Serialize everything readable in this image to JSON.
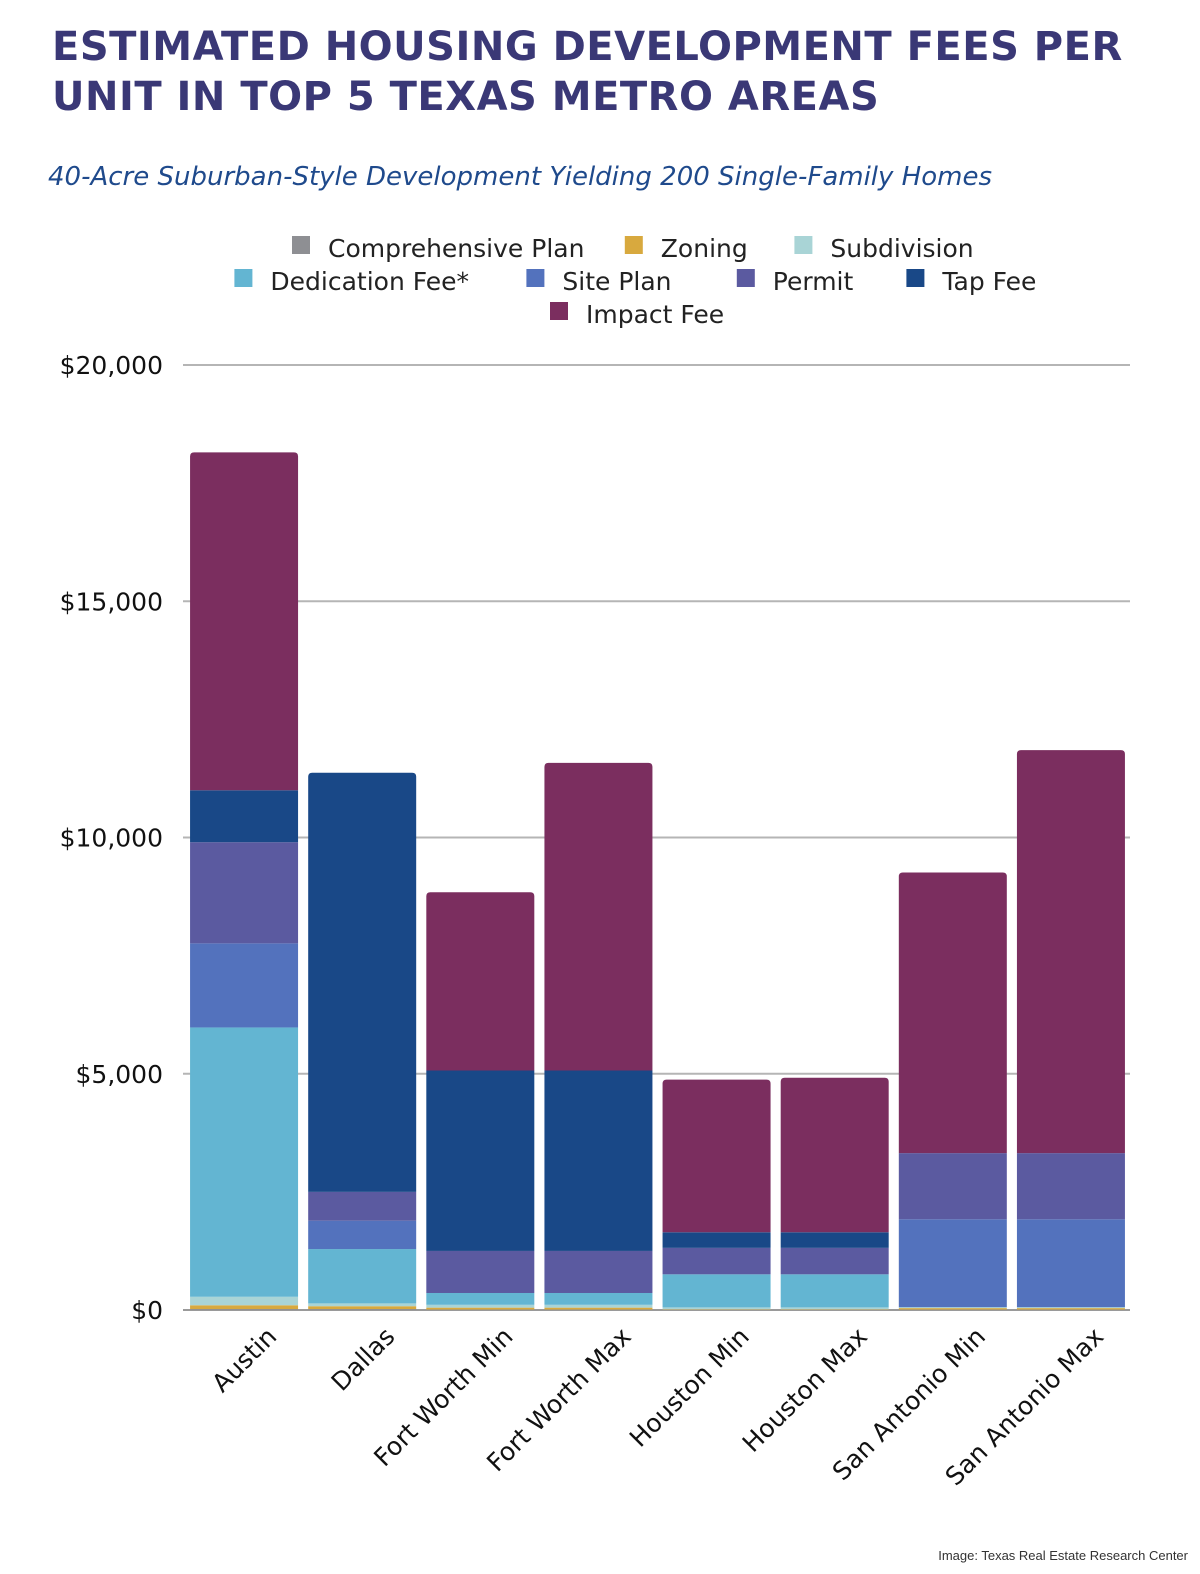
{
  "title": "ESTIMATED HOUSING DEVELOPMENT FEES PER UNIT IN TOP 5 TEXAS METRO AREAS",
  "subtitle": "40-Acre Suburban-Style Development Yielding 200 Single-Family Homes",
  "credit": "Image: Texas Real Estate Research Center",
  "chart_data": {
    "type": "bar",
    "stacked": true,
    "title": "ESTIMATED HOUSING DEVELOPMENT FEES PER UNIT IN TOP 5 TEXAS METRO AREAS",
    "subtitle": "40-Acre Suburban-Style Development Yielding 200 Single-Family Homes",
    "xlabel": "",
    "ylabel": "",
    "ylim": [
      0,
      20000
    ],
    "yticks": [
      0,
      5000,
      10000,
      15000,
      20000
    ],
    "ytick_labels": [
      "$0",
      "$5,000",
      "$10,000",
      "$15,000",
      "$20,000"
    ],
    "grid": true,
    "legend_position": "top",
    "categories": [
      "Austin",
      "Dallas",
      "Fort Worth Min",
      "Fort Worth Max",
      "Houston Min",
      "Houston Max",
      "San Antonio Min",
      "San Antonio Max"
    ],
    "series": [
      {
        "name": "Comprehensive Plan",
        "color": "#8e8f93",
        "values": [
          20,
          20,
          10,
          10,
          5,
          5,
          10,
          10
        ]
      },
      {
        "name": "Zoning",
        "color": "#d8a93e",
        "values": [
          80,
          60,
          40,
          40,
          10,
          10,
          30,
          30
        ]
      },
      {
        "name": "Subdivision",
        "color": "#a9d4d6",
        "values": [
          180,
          60,
          60,
          60,
          40,
          40,
          20,
          20
        ]
      },
      {
        "name": "Dedication Fee*",
        "color": "#63b5d2",
        "values": [
          5700,
          1150,
          250,
          250,
          700,
          700,
          0,
          0
        ]
      },
      {
        "name": "Site Plan",
        "color": "#5372bd",
        "values": [
          1780,
          600,
          0,
          0,
          0,
          0,
          1860,
          1860
        ]
      },
      {
        "name": "Permit",
        "color": "#5b5aa0",
        "values": [
          2140,
          610,
          890,
          890,
          560,
          560,
          1400,
          1400
        ]
      },
      {
        "name": "Tap Fee",
        "color": "#194887",
        "values": [
          1100,
          8870,
          3820,
          3820,
          330,
          330,
          0,
          0
        ]
      },
      {
        "name": "Impact Fee",
        "color": "#7b2e5f",
        "values": [
          7150,
          0,
          3770,
          6510,
          3230,
          3270,
          5940,
          8530
        ]
      }
    ]
  }
}
